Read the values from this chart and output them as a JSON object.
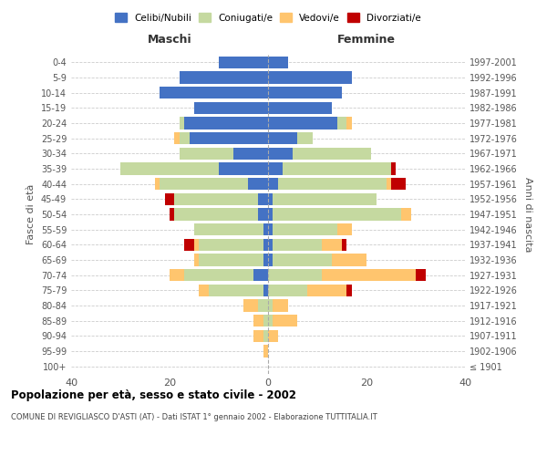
{
  "age_groups": [
    "100+",
    "95-99",
    "90-94",
    "85-89",
    "80-84",
    "75-79",
    "70-74",
    "65-69",
    "60-64",
    "55-59",
    "50-54",
    "45-49",
    "40-44",
    "35-39",
    "30-34",
    "25-29",
    "20-24",
    "15-19",
    "10-14",
    "5-9",
    "0-4"
  ],
  "birth_years": [
    "≤ 1901",
    "1902-1906",
    "1907-1911",
    "1912-1916",
    "1917-1921",
    "1922-1926",
    "1927-1931",
    "1932-1936",
    "1937-1941",
    "1942-1946",
    "1947-1951",
    "1952-1956",
    "1957-1961",
    "1962-1966",
    "1967-1971",
    "1972-1976",
    "1977-1981",
    "1982-1986",
    "1987-1991",
    "1992-1996",
    "1997-2001"
  ],
  "colors": {
    "celibi": "#4472c4",
    "coniugati": "#c5d9a0",
    "vedovi": "#ffc56e",
    "divorziati": "#c00000"
  },
  "maschi": {
    "celibi": [
      0,
      0,
      0,
      0,
      0,
      1,
      3,
      1,
      1,
      1,
      2,
      2,
      4,
      10,
      7,
      16,
      17,
      15,
      22,
      18,
      10
    ],
    "coniugati": [
      0,
      0,
      1,
      1,
      2,
      11,
      14,
      13,
      13,
      14,
      17,
      17,
      18,
      20,
      11,
      2,
      1,
      0,
      0,
      0,
      0
    ],
    "vedovi": [
      0,
      1,
      2,
      2,
      3,
      2,
      3,
      1,
      1,
      0,
      0,
      0,
      1,
      0,
      0,
      1,
      0,
      0,
      0,
      0,
      0
    ],
    "divorziati": [
      0,
      0,
      0,
      0,
      0,
      0,
      0,
      0,
      2,
      0,
      1,
      2,
      0,
      0,
      0,
      0,
      0,
      0,
      0,
      0,
      0
    ]
  },
  "femmine": {
    "celibi": [
      0,
      0,
      0,
      0,
      0,
      0,
      0,
      1,
      1,
      1,
      1,
      1,
      2,
      3,
      5,
      6,
      14,
      13,
      15,
      17,
      4
    ],
    "coniugati": [
      0,
      0,
      0,
      1,
      1,
      8,
      11,
      12,
      10,
      13,
      26,
      21,
      22,
      22,
      16,
      3,
      2,
      0,
      0,
      0,
      0
    ],
    "vedovi": [
      0,
      0,
      2,
      5,
      3,
      8,
      19,
      7,
      4,
      3,
      2,
      0,
      1,
      0,
      0,
      0,
      1,
      0,
      0,
      0,
      0
    ],
    "divorziati": [
      0,
      0,
      0,
      0,
      0,
      1,
      2,
      0,
      1,
      0,
      0,
      0,
      3,
      1,
      0,
      0,
      0,
      0,
      0,
      0,
      0
    ]
  },
  "title": "Popolazione per età, sesso e stato civile - 2002",
  "subtitle": "COMUNE DI REVIGLIASCO D'ASTI (AT) - Dati ISTAT 1° gennaio 2002 - Elaborazione TUTTITALIA.IT",
  "xlabel_left": "Maschi",
  "xlabel_right": "Femmine",
  "ylabel_left": "Fasce di età",
  "ylabel_right": "Anni di nascita",
  "xlim": 40,
  "legend_labels": [
    "Celibi/Nubili",
    "Coniugati/e",
    "Vedovi/e",
    "Divorziati/e"
  ],
  "background_color": "#ffffff",
  "grid_color": "#cccccc"
}
